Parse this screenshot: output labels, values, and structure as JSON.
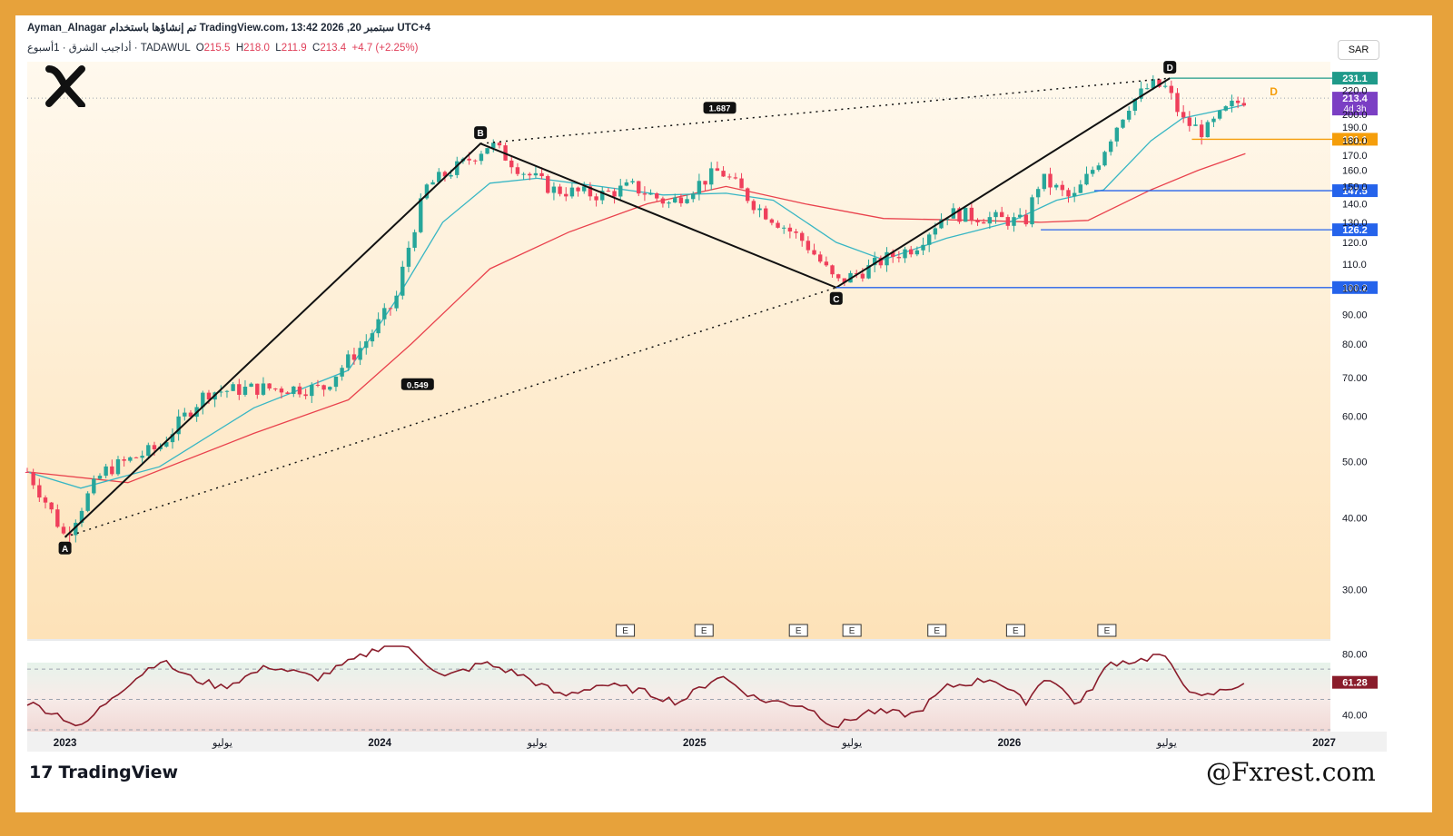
{
  "header": {
    "author_line": "Ayman_Alnagar تم إنشاؤها باستخدام TradingView.com، 13:42 2026 ,20 سبتمبر UTC+4",
    "symbol": "أداجيب الشرق · 1أسبوع · TADAWUL",
    "open_label": "O",
    "open": "215.5",
    "high_label": "H",
    "high": "218.0",
    "low_label": "L",
    "low": "211.9",
    "close_label": "C",
    "close": "213.4",
    "change": "+4.7 (+2.25%)",
    "currency": "SAR"
  },
  "brand": {
    "tradingview": "TradingView",
    "watermark": "@Fxrest.com"
  },
  "colors": {
    "up": "#26a69a",
    "down": "#ef3f5b",
    "ema_fast": "#37b6c4",
    "ema_slow": "#e9424d",
    "rsi": "#8a1c2b",
    "frame": "#e7a23b"
  },
  "chart_data": {
    "type": "candlestick",
    "title": "",
    "timeframe": "1W",
    "ylim": [
      25,
      245
    ],
    "y_ticks": [
      30,
      40,
      50,
      60,
      70,
      80,
      90,
      100,
      110,
      120,
      130,
      140,
      150,
      160,
      170,
      180,
      190,
      200,
      220
    ],
    "y_tick_labels": [
      "30.00",
      "40.00",
      "50.00",
      "60.00",
      "70.00",
      "80.00",
      "90.00",
      "100.0",
      "110.0",
      "120.0",
      "130.0",
      "140.0",
      "150.0",
      "160.0",
      "170.0",
      "180.0",
      "190.0",
      "200.0",
      "220.0"
    ],
    "x_ticks": [
      {
        "t": 2023.0,
        "label": "2023",
        "bold": true
      },
      {
        "t": 2023.5,
        "label": "يوليو",
        "bold": false
      },
      {
        "t": 2024.0,
        "label": "2024",
        "bold": true
      },
      {
        "t": 2024.5,
        "label": "يوليو",
        "bold": false
      },
      {
        "t": 2025.0,
        "label": "2025",
        "bold": true
      },
      {
        "t": 2025.5,
        "label": "يوليو",
        "bold": false
      },
      {
        "t": 2026.0,
        "label": "2026",
        "bold": true
      },
      {
        "t": 2026.5,
        "label": "يوليو",
        "bold": false
      },
      {
        "t": 2027.0,
        "label": "2027",
        "bold": true
      }
    ],
    "xlim": [
      2022.88,
      2027.02
    ],
    "anchors": [
      [
        2022.88,
        48
      ],
      [
        2023.0,
        37
      ],
      [
        2023.12,
        48
      ],
      [
        2023.3,
        53
      ],
      [
        2023.45,
        66
      ],
      [
        2023.6,
        67
      ],
      [
        2023.82,
        67
      ],
      [
        2023.95,
        80
      ],
      [
        2024.05,
        95
      ],
      [
        2024.15,
        150
      ],
      [
        2024.27,
        165
      ],
      [
        2024.35,
        178
      ],
      [
        2024.45,
        160
      ],
      [
        2024.55,
        148
      ],
      [
        2024.7,
        145
      ],
      [
        2024.8,
        150
      ],
      [
        2024.92,
        140
      ],
      [
        2025.08,
        160
      ],
      [
        2025.2,
        138
      ],
      [
        2025.35,
        120
      ],
      [
        2025.45,
        102
      ],
      [
        2025.55,
        108
      ],
      [
        2025.6,
        112
      ],
      [
        2025.7,
        118
      ],
      [
        2025.8,
        135
      ],
      [
        2025.95,
        132
      ],
      [
        2026.05,
        130
      ],
      [
        2026.1,
        155
      ],
      [
        2026.2,
        142
      ],
      [
        2026.28,
        165
      ],
      [
        2026.38,
        208
      ],
      [
        2026.45,
        225
      ],
      [
        2026.5,
        222
      ],
      [
        2026.55,
        195
      ],
      [
        2026.62,
        186
      ],
      [
        2026.7,
        206
      ],
      [
        2026.75,
        213
      ]
    ],
    "ema_fast": [
      [
        2022.88,
        48
      ],
      [
        2023.05,
        45
      ],
      [
        2023.3,
        49
      ],
      [
        2023.6,
        62
      ],
      [
        2023.9,
        72
      ],
      [
        2024.05,
        95
      ],
      [
        2024.2,
        130
      ],
      [
        2024.35,
        152
      ],
      [
        2024.5,
        155
      ],
      [
        2024.7,
        150
      ],
      [
        2024.9,
        145
      ],
      [
        2025.1,
        146
      ],
      [
        2025.25,
        142
      ],
      [
        2025.45,
        120
      ],
      [
        2025.6,
        112
      ],
      [
        2025.8,
        122
      ],
      [
        2026.0,
        130
      ],
      [
        2026.15,
        142
      ],
      [
        2026.3,
        148
      ],
      [
        2026.45,
        180
      ],
      [
        2026.55,
        197
      ],
      [
        2026.7,
        205
      ],
      [
        2026.75,
        208
      ]
    ],
    "ema_slow": [
      [
        2022.88,
        48
      ],
      [
        2023.2,
        46
      ],
      [
        2023.6,
        56
      ],
      [
        2023.9,
        64
      ],
      [
        2024.1,
        80
      ],
      [
        2024.35,
        108
      ],
      [
        2024.6,
        125
      ],
      [
        2024.85,
        140
      ],
      [
        2025.1,
        150
      ],
      [
        2025.35,
        140
      ],
      [
        2025.6,
        132
      ],
      [
        2025.9,
        131
      ],
      [
        2026.1,
        130
      ],
      [
        2026.25,
        131
      ],
      [
        2026.45,
        148
      ],
      [
        2026.6,
        160
      ],
      [
        2026.75,
        171
      ]
    ],
    "harmonic": {
      "points": [
        {
          "label": "A",
          "t": 2023.0,
          "v": 37
        },
        {
          "label": "B",
          "t": 2024.32,
          "v": 178
        },
        {
          "label": "C",
          "t": 2025.45,
          "v": 100.2
        },
        {
          "label": "D",
          "t": 2026.51,
          "v": 231.1
        }
      ],
      "ratios": [
        {
          "label": "1.687",
          "t": 2025.08,
          "v": 205
        },
        {
          "label": "0.549",
          "t": 2024.12,
          "v": 68
        }
      ]
    },
    "levels": [
      {
        "value": 231.1,
        "label": "231.1",
        "color": "#1f9a8a",
        "from_t": 2026.51
      },
      {
        "value": 181.1,
        "label": "181.1",
        "color": "#f59e0b",
        "from_t": 2026.58
      },
      {
        "value": 147.5,
        "label": "147.5",
        "color": "#2563eb",
        "from_t": 2026.27
      },
      {
        "value": 126.2,
        "label": "126.2",
        "color": "#2563eb",
        "from_t": 2026.1
      },
      {
        "value": 100.2,
        "label": "100.2",
        "color": "#2563eb",
        "from_t": 2025.45
      }
    ],
    "last_price": {
      "value": 213.4,
      "label": "213.4",
      "countdown": "4d 3h"
    },
    "earnings_markers": [
      {
        "t": 2024.78,
        "label": "E"
      },
      {
        "t": 2025.03,
        "label": "E"
      },
      {
        "t": 2025.33,
        "label": "E"
      },
      {
        "t": 2025.5,
        "label": "E"
      },
      {
        "t": 2025.77,
        "label": "E"
      },
      {
        "t": 2026.02,
        "label": "E"
      },
      {
        "t": 2026.31,
        "label": "E"
      }
    ],
    "dividend_marker": {
      "label": "D"
    },
    "rsi": {
      "ylim": [
        30,
        85
      ],
      "ticks": [
        {
          "v": 80,
          "label": "80.00"
        },
        {
          "v": 40,
          "label": "40.00"
        }
      ],
      "bands": [
        70,
        50,
        30
      ],
      "last": {
        "value": 61.28,
        "label": "61.28"
      },
      "anchors": [
        [
          2022.88,
          48
        ],
        [
          2022.98,
          40
        ],
        [
          2023.05,
          31
        ],
        [
          2023.15,
          52
        ],
        [
          2023.3,
          76
        ],
        [
          2023.4,
          64
        ],
        [
          2023.5,
          58
        ],
        [
          2023.65,
          72
        ],
        [
          2023.8,
          64
        ],
        [
          2023.95,
          79
        ],
        [
          2024.05,
          90
        ],
        [
          2024.12,
          80
        ],
        [
          2024.2,
          64
        ],
        [
          2024.33,
          74
        ],
        [
          2024.45,
          66
        ],
        [
          2024.58,
          52
        ],
        [
          2024.7,
          60
        ],
        [
          2024.82,
          56
        ],
        [
          2024.95,
          48
        ],
        [
          2025.08,
          66
        ],
        [
          2025.2,
          50
        ],
        [
          2025.35,
          46
        ],
        [
          2025.45,
          32
        ],
        [
          2025.55,
          42
        ],
        [
          2025.7,
          40
        ],
        [
          2025.8,
          58
        ],
        [
          2025.95,
          64
        ],
        [
          2026.05,
          48
        ],
        [
          2026.12,
          66
        ],
        [
          2026.22,
          46
        ],
        [
          2026.32,
          74
        ],
        [
          2026.42,
          76
        ],
        [
          2026.48,
          80
        ],
        [
          2026.52,
          70
        ],
        [
          2026.6,
          50
        ],
        [
          2026.68,
          56
        ],
        [
          2026.75,
          61.28
        ]
      ]
    }
  }
}
